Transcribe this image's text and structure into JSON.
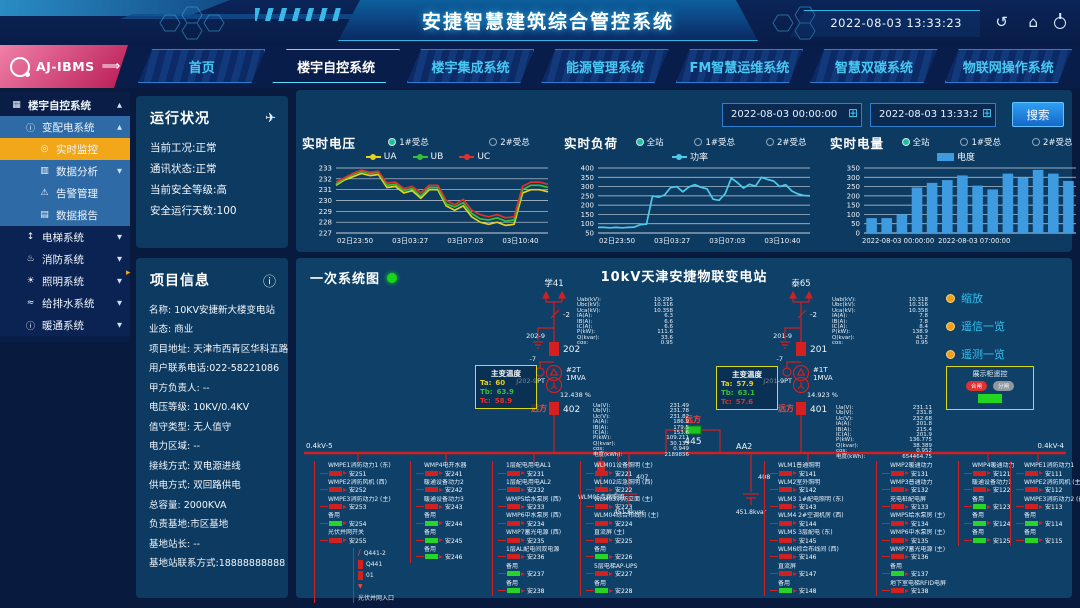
{
  "header": {
    "title": "安捷智慧建筑综合管控系统",
    "datetime": "2022-08-03 13:33:23",
    "back_icon": "↺",
    "home_icon": "⌂"
  },
  "nav": {
    "logo": "AJ-IBMS",
    "logo_arrow": "⟹",
    "tabs": [
      {
        "label": "首页",
        "active": false
      },
      {
        "label": "楼宇自控系统",
        "active": true
      },
      {
        "label": "楼宇集成系统",
        "active": false
      },
      {
        "label": "能源管理系统",
        "active": false
      },
      {
        "label": "FM智慧运维系统",
        "active": false
      },
      {
        "label": "智慧双碳系统",
        "active": false
      },
      {
        "label": "物联网操作系统",
        "active": false
      }
    ]
  },
  "sidebar": {
    "items": [
      {
        "label": "楼宇自控系统",
        "depth": 0,
        "glyph": "▦",
        "icon": "menu-grid",
        "caret": "up",
        "style": "root"
      },
      {
        "label": "变配电系统",
        "depth": 1,
        "glyph": "ⓘ",
        "icon": "power-distribution",
        "caret": "up",
        "style": "group"
      },
      {
        "label": "实时监控",
        "depth": 2,
        "glyph": "◎",
        "icon": "realtime-monitor",
        "caret": "",
        "style": "active"
      },
      {
        "label": "数据分析",
        "depth": 2,
        "glyph": "▥",
        "icon": "bar-chart",
        "caret": "down",
        "style": "group"
      },
      {
        "label": "告警管理",
        "depth": 2,
        "glyph": "⚠",
        "icon": "alarm-bell",
        "caret": "",
        "style": "group"
      },
      {
        "label": "数据报告",
        "depth": 2,
        "glyph": "▤",
        "icon": "data-report",
        "caret": "",
        "style": "group"
      },
      {
        "label": "电梯系统",
        "depth": 1,
        "glyph": "↕",
        "icon": "elevator",
        "caret": "down",
        "style": "plain"
      },
      {
        "label": "消防系统",
        "depth": 1,
        "glyph": "♨",
        "icon": "fire",
        "caret": "down",
        "style": "plain"
      },
      {
        "label": "照明系统",
        "depth": 1,
        "glyph": "☀",
        "icon": "lighting",
        "caret": "down",
        "style": "plain"
      },
      {
        "label": "给排水系统",
        "depth": 1,
        "glyph": "≈",
        "icon": "water-supply",
        "caret": "down",
        "style": "plain"
      },
      {
        "label": "暖通系统",
        "depth": 1,
        "glyph": "ⓘ",
        "icon": "hvac",
        "caret": "down",
        "style": "plain"
      }
    ]
  },
  "status_panel": {
    "title": "运行状况",
    "send_icon": "✈",
    "items": [
      "当前工况:正常",
      "通讯状态:正常",
      "当前安全等级:高",
      "安全运行天数:100"
    ]
  },
  "project_panel": {
    "title": "项目信息",
    "info_icon": "ⓘ",
    "items": [
      "名称: 10KV安捷新大楼变电站",
      "业态: 商业",
      "项目地址: 天津市西青区华科五路",
      "用户联系电话:022-58221086",
      "甲方负责人: --",
      "电压等级: 10KV/0.4KV",
      "值守类型: 无人值守",
      "电力区域: --",
      "接线方式: 双电源进线",
      "供电方式: 双回路供电",
      "总容量: 2000KVA",
      "负责基地:市区基地",
      "基地站长: --",
      "基地站联系方式:18888888888"
    ]
  },
  "toolbar": {
    "date_from": "2022-08-03 00:00:00",
    "date_to": "2022-08-03 13:33:21",
    "search_label": "搜索",
    "calendar_icon": "⊞"
  },
  "chart_data": [
    {
      "type": "line",
      "title": "实时电压",
      "radios": [
        {
          "label": "1#受总",
          "selected": true
        },
        {
          "label": "2#受总",
          "selected": false
        }
      ],
      "x_ticks": [
        "02日23:50",
        "03日03:27",
        "03日07:03",
        "03日10:40"
      ],
      "ylim": [
        227,
        233
      ],
      "y_ticks": [
        227,
        228,
        229,
        230,
        231,
        232,
        233
      ],
      "series": [
        {
          "name": "UA",
          "color": "#e6d020",
          "values": [
            231.4,
            231.9,
            232.2,
            232.5,
            232.3,
            232.4,
            231.2,
            231.3,
            230.7,
            230.9,
            230.2,
            231.0,
            231.0,
            229.5,
            229.1,
            229.5,
            228.5,
            228.0,
            227.8,
            228.0,
            227.7,
            227.8,
            230.7,
            231.0,
            231.0,
            230.8
          ]
        },
        {
          "name": "UB",
          "color": "#35c135",
          "values": [
            231.5,
            232.0,
            232.4,
            232.7,
            232.5,
            232.6,
            231.4,
            231.5,
            230.9,
            231.1,
            230.4,
            231.2,
            231.2,
            229.7,
            229.4,
            229.8,
            228.8,
            228.3,
            228.2,
            228.4,
            228.1,
            228.2,
            231.0,
            231.4,
            231.4,
            231.2
          ]
        },
        {
          "name": "UC",
          "color": "#e03228",
          "values": [
            231.7,
            232.1,
            232.5,
            232.8,
            232.6,
            232.7,
            231.6,
            231.7,
            231.1,
            231.3,
            230.7,
            231.4,
            231.4,
            230.0,
            229.6,
            230.1,
            229.1,
            228.7,
            228.5,
            228.7,
            228.4,
            228.5,
            231.3,
            231.7,
            231.7,
            231.5
          ]
        }
      ]
    },
    {
      "type": "line",
      "title": "实时负荷",
      "radios": [
        {
          "label": "全站",
          "selected": true
        },
        {
          "label": "1#受总",
          "selected": false
        },
        {
          "label": "2#受总",
          "selected": false
        }
      ],
      "x_ticks": [
        "02日23:50",
        "03日03:27",
        "03日07:03",
        "03日10:40"
      ],
      "ylim": [
        50,
        400
      ],
      "y_ticks": [
        50,
        100,
        150,
        200,
        250,
        300,
        350,
        400
      ],
      "series": [
        {
          "name": "功率",
          "color": "#4ec9e8",
          "values": [
            80,
            80,
            78,
            80,
            78,
            80,
            82,
            95,
            98,
            250,
            243,
            255,
            295,
            300,
            272,
            298,
            310,
            296,
            288,
            232,
            226,
            262,
            345,
            322,
            292,
            312,
            302,
            350,
            338,
            330,
            300,
            310,
            276,
            260,
            252,
            250
          ]
        }
      ]
    },
    {
      "type": "bar",
      "title": "实时电量",
      "radios": [
        {
          "label": "全站",
          "selected": true
        },
        {
          "label": "1#受总",
          "selected": false
        },
        {
          "label": "2#受总",
          "selected": false
        }
      ],
      "x_ticks": [
        "2022-08-03 00:00:00",
        "2022-08-03 07:00:00"
      ],
      "ylim": [
        0,
        350
      ],
      "y_ticks": [
        0,
        50,
        100,
        150,
        200,
        250,
        300,
        350
      ],
      "series": [
        {
          "name": "电度",
          "color": "#3f9be0",
          "values": [
            80,
            80,
            100,
            245,
            270,
            285,
            310,
            255,
            235,
            320,
            300,
            340,
            320,
            280
          ]
        }
      ]
    }
  ],
  "diagram": {
    "status_label": "一次系统图",
    "title": "10kV天津安捷物联变电站",
    "bus_left_label": "0.4kV-5",
    "bus_right_label": "0.4kV-4",
    "bus_right_name": "AA2",
    "tie_remote": "远方",
    "tie_breaker": "445",
    "bay_left": {
      "source": "学41",
      "disconnector": "-2",
      "earth_switch": "202-9",
      "breaker": "202",
      "pt_switch": "-7",
      "pt": "J202-9PT",
      "tx": "#2T",
      "tx_capacity": "1MVA",
      "tx_impedance": "12.438 %",
      "remote": "远方",
      "lv_breaker": "402"
    },
    "bay_right": {
      "source": "泰65",
      "disconnector": "-2",
      "earth_switch": "201-9",
      "breaker": "201",
      "pt_switch": "-7",
      "pt": "J201-9PT",
      "tx": "#1T",
      "tx_capacity": "1MVA",
      "tx_impedance": "14.923 %",
      "remote": "远方",
      "lv_breaker": "401"
    },
    "temp_left": {
      "title": "主变温度",
      "rows": [
        {
          "k": "Ta:",
          "v": "60",
          "c": "#e6d020"
        },
        {
          "k": "Tb:",
          "v": "63.9",
          "c": "#35c135"
        },
        {
          "k": "Tc:",
          "v": "58.9",
          "c": "#e03228"
        }
      ]
    },
    "temp_right": {
      "title": "主变温度",
      "rows": [
        {
          "k": "Ta:",
          "v": "57.9",
          "c": "#e6d020"
        },
        {
          "k": "Tb:",
          "v": "63.1",
          "c": "#35c135"
        },
        {
          "k": "Tc:",
          "v": "57.6",
          "c": "#e03228"
        }
      ]
    },
    "meas_hv_left": [
      [
        "Uab(kV):",
        "10.295"
      ],
      [
        "Ubc(kV):",
        "10.316"
      ],
      [
        "Uca(kV):",
        "10.358"
      ],
      [
        "IA(A):",
        "6.3"
      ],
      [
        "IB(A):",
        "6.6"
      ],
      [
        "IC(A):",
        "6.6"
      ],
      [
        "P(kW):",
        "111.6"
      ],
      [
        "Q(kvar):",
        "33.6"
      ],
      [
        "cos:",
        "0.95"
      ]
    ],
    "meas_hv_right": [
      [
        "Uab(kV):",
        "10.318"
      ],
      [
        "Ubc(kV):",
        "10.316"
      ],
      [
        "Uca(kV):",
        "10.358"
      ],
      [
        "IA(A):",
        "7.8"
      ],
      [
        "IB(A):",
        "7.8"
      ],
      [
        "IC(A):",
        "8.4"
      ],
      [
        "P(kW):",
        "138.9"
      ],
      [
        "Q(kvar):",
        "43.2"
      ],
      [
        "cos:",
        "0.95"
      ]
    ],
    "meas_lv_left": [
      [
        "Ua(V):",
        "231.49"
      ],
      [
        "Ub(V):",
        "231.78"
      ],
      [
        "Uc(V):",
        "231.82"
      ],
      [
        "IA(A):",
        "186.9"
      ],
      [
        "IB(A):",
        "179.5"
      ],
      [
        "IC(A):",
        "153.6"
      ],
      [
        "P(kW):",
        "109.211"
      ],
      [
        "Q(kvar):",
        "30.133"
      ],
      [
        "cos:",
        "0.949"
      ],
      [
        "电度(kWh):",
        "2189856"
      ]
    ],
    "meas_lv_right": [
      [
        "Ua(V):",
        "231.11"
      ],
      [
        "Ub(V):",
        "231.8"
      ],
      [
        "Uc(V):",
        "232.68"
      ],
      [
        "IA(A):",
        "201.8"
      ],
      [
        "IB(A):",
        "215.4"
      ],
      [
        "IC(A):",
        "201.9"
      ],
      [
        "P(kW):",
        "136.775"
      ],
      [
        "Q(kvar):",
        "38.389"
      ],
      [
        "cos:",
        "0.952"
      ],
      [
        "电度(kWh):",
        "654464.75"
      ]
    ],
    "corridor_feeder": "WLM05走廊照明",
    "capacitors": [
      {
        "id": "407",
        "kvar": "451.8kvar"
      },
      {
        "id": "408",
        "kvar": "451.8kvar"
      }
    ],
    "controls": [
      "缩放",
      "遥信一览",
      "遥测一览"
    ],
    "demo_box": {
      "title": "展示柜遥控",
      "on_label": "合闸",
      "off_label": "分闸"
    },
    "pv_chain": [
      "Q441-2",
      "Q441",
      "01"
    ],
    "pv_label": "光伏并网入口",
    "feeder_columns": [
      {
        "items": [
          {
            "label": "WMPE1消防动力1 (东)",
            "code": "安251",
            "state": "closed"
          },
          {
            "label": "WMPE2消防风机 (西)",
            "code": "安252",
            "state": "closed"
          },
          {
            "label": "WMPE3消防动力2 (主)",
            "code": "安253",
            "state": "closed"
          },
          {
            "label": "备用",
            "code": "安254",
            "state": "spare"
          },
          {
            "label": "光伏并网开关",
            "code": "安255",
            "state": "closed"
          }
        ]
      },
      {
        "items": [
          {
            "label": "WMP4电开水器",
            "code": "安241",
            "state": "closed"
          },
          {
            "label": "暖通设备动力2",
            "code": "安242",
            "state": "closed"
          },
          {
            "label": "暖通设备动力3",
            "code": "安243",
            "state": "closed"
          },
          {
            "label": "备用",
            "code": "安244",
            "state": "spare"
          },
          {
            "label": "备用",
            "code": "安245",
            "state": "spare"
          },
          {
            "label": "备用",
            "code": "安246",
            "state": "spare"
          }
        ]
      },
      {
        "items": [
          {
            "label": "1层配电用电AL1",
            "code": "安231",
            "state": "closed"
          },
          {
            "label": "1层配电用电AL2",
            "code": "安232",
            "state": "closed"
          },
          {
            "label": "WMP5给水泵房 (西)",
            "code": "安233",
            "state": "closed"
          },
          {
            "label": "WMP6中水泵房 (西)",
            "code": "安234",
            "state": "closed"
          },
          {
            "label": "WMP7蓄光电源 (西)",
            "code": "安235",
            "state": "closed"
          },
          {
            "label": "1层AL配电间双电源",
            "code": "安236",
            "state": "closed"
          },
          {
            "label": "备用",
            "code": "安237",
            "state": "spare"
          },
          {
            "label": "备用",
            "code": "安238",
            "state": "spare"
          }
        ]
      },
      {
        "items": [
          {
            "label": "WLM01设备照明 (主)",
            "code": "安221",
            "state": "closed"
          },
          {
            "label": "WLM02应急照明 (西)",
            "code": "安222",
            "state": "closed"
          },
          {
            "label": "WLM03消防立面 (主)",
            "code": "安223",
            "state": "closed"
          },
          {
            "label": "WLM04综合布线间 (主)",
            "code": "安224",
            "state": "closed"
          },
          {
            "label": "直流屏 (主)",
            "code": "安225",
            "state": "closed"
          },
          {
            "label": "备用",
            "code": "安226",
            "state": "spare"
          },
          {
            "label": "5层电梯AP-UPS",
            "code": "安227",
            "state": "closed"
          },
          {
            "label": "备用",
            "code": "安228",
            "state": "spare"
          }
        ]
      },
      {
        "items": [
          {
            "label": "WLM1普通照明",
            "code": "安141",
            "state": "closed"
          },
          {
            "label": "WLM2室外照明",
            "code": "安142",
            "state": "closed"
          },
          {
            "label": "WLM3 1#配电照明 (东)",
            "code": "安143",
            "state": "closed"
          },
          {
            "label": "WLM4 2#空调机房 (西)",
            "code": "安144",
            "state": "closed"
          },
          {
            "label": "WLM5 3层配电 (东)",
            "code": "安145",
            "state": "closed"
          },
          {
            "label": "WLM6综合布线间 (西)",
            "code": "安146",
            "state": "closed"
          },
          {
            "label": "直流屏",
            "code": "安147",
            "state": "closed"
          },
          {
            "label": "备用",
            "code": "安148",
            "state": "spare"
          }
        ]
      },
      {
        "items": [
          {
            "label": "WMP2暖通动力",
            "code": "安131",
            "state": "closed"
          },
          {
            "label": "WMP3普通动力",
            "code": "安132",
            "state": "closed"
          },
          {
            "label": "充电桩配电屏",
            "code": "安133",
            "state": "closed"
          },
          {
            "label": "WMP5给水泵房 (主)",
            "code": "安134",
            "state": "closed"
          },
          {
            "label": "WMP6中水泵房 (主)",
            "code": "安135",
            "state": "closed"
          },
          {
            "label": "WMP7蓄光电源 (主)",
            "code": "安136",
            "state": "closed"
          },
          {
            "label": "备用",
            "code": "安137",
            "state": "spare"
          },
          {
            "label": "地下室电梯RFID电屏",
            "code": "安138",
            "state": "closed"
          }
        ]
      },
      {
        "items": [
          {
            "label": "WMP4暖通动力",
            "code": "安121",
            "state": "closed"
          },
          {
            "label": "暖通设备动力1",
            "code": "安122",
            "state": "closed"
          },
          {
            "label": "备用",
            "code": "安123",
            "state": "spare"
          },
          {
            "label": "备用",
            "code": "安124",
            "state": "spare"
          },
          {
            "label": "备用",
            "code": "安125",
            "state": "spare"
          }
        ]
      },
      {
        "items": [
          {
            "label": "WMPE1消防动力1",
            "code": "安111",
            "state": "closed"
          },
          {
            "label": "WMPE2消防风机 (主)",
            "code": "安112",
            "state": "closed"
          },
          {
            "label": "WMPE3消防动力2 (备)",
            "code": "安113",
            "state": "closed"
          },
          {
            "label": "备用",
            "code": "安114",
            "state": "spare"
          },
          {
            "label": "备用",
            "code": "安115",
            "state": "spare"
          }
        ]
      }
    ]
  }
}
